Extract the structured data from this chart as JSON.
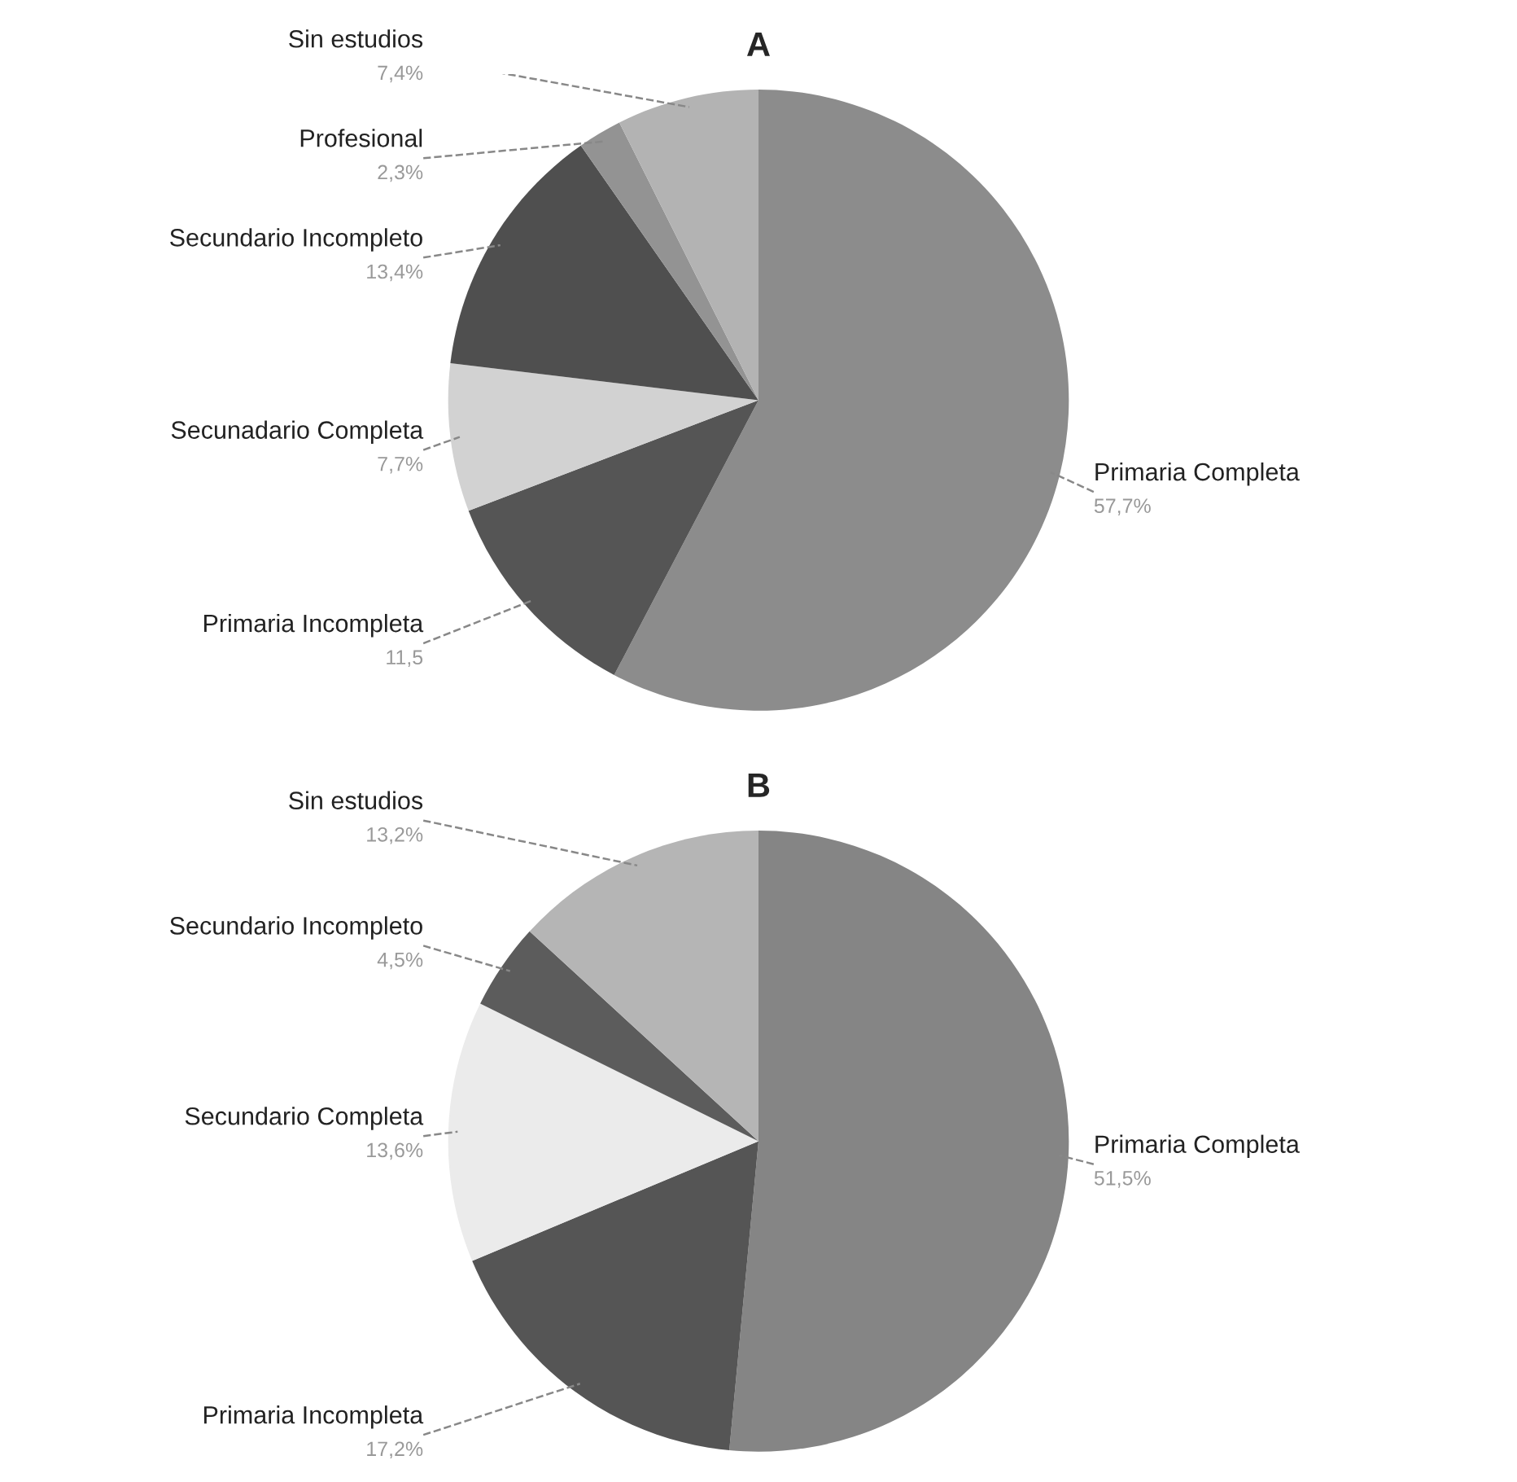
{
  "chart_data": [
    {
      "type": "pie",
      "title": "A",
      "categories": [
        "Primaria Completa",
        "Primaria Incompleta",
        "Secunadario Completa",
        "Secundario Incompleto",
        "Profesional",
        "Sin estudios"
      ],
      "values": [
        57.7,
        11.5,
        7.7,
        13.4,
        2.3,
        7.4
      ],
      "value_labels": [
        "57,7%",
        "11,5",
        "7,7%",
        "13,4%",
        "2,3%",
        "7,4%"
      ],
      "colors": [
        "#8c8c8c",
        "#555555",
        "#d2d2d2",
        "#4f4f4f",
        "#939393",
        "#b3b3b3"
      ]
    },
    {
      "type": "pie",
      "title": "B",
      "categories": [
        "Primaria Completa",
        "Primaria Incompleta",
        "Secundario Completa",
        "Secundario Incompleto",
        "Sin estudios"
      ],
      "values": [
        51.5,
        17.2,
        13.6,
        4.5,
        13.2
      ],
      "value_labels": [
        "51,5%",
        "17,2%",
        "13,6%",
        "4,5%",
        "13,2%"
      ],
      "colors": [
        "#858585",
        "#555555",
        "#ebebeb",
        "#5c5c5c",
        "#b5b5b5"
      ]
    }
  ]
}
